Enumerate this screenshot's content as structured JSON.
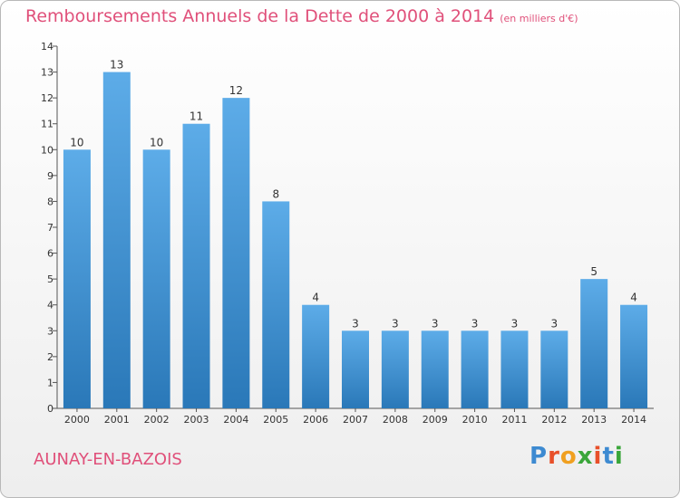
{
  "title": "Remboursements Annuels de la Dette de 2000 à 2014",
  "unit_note": "(en milliers d'€)",
  "commune": "AUNAY-EN-BAZOIS",
  "logo_text": "Proxiti",
  "colors": {
    "title": "#e0507a",
    "bar_top": "#5dace8",
    "bar_bottom": "#2a78b8",
    "logo": [
      "#3d8ad1",
      "#e8502a",
      "#f0a020",
      "#3aa63a",
      "#e8502a",
      "#3d8ad1",
      "#3aa63a"
    ]
  },
  "chart_data": {
    "type": "bar",
    "categories": [
      "2000",
      "2001",
      "2002",
      "2003",
      "2004",
      "2005",
      "2006",
      "2007",
      "2008",
      "2009",
      "2010",
      "2011",
      "2012",
      "2013",
      "2014"
    ],
    "values": [
      10,
      13,
      10,
      11,
      12,
      8,
      4,
      3,
      3,
      3,
      3,
      3,
      3,
      5,
      4
    ],
    "ylim": [
      0,
      14
    ],
    "yticks": [
      0,
      1,
      2,
      3,
      4,
      5,
      6,
      7,
      8,
      9,
      10,
      11,
      12,
      13,
      14
    ],
    "grid": false,
    "data_labels": true
  }
}
